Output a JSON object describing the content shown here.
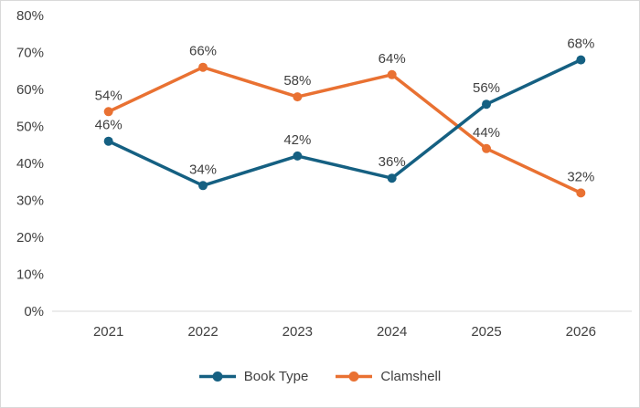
{
  "chart_data": {
    "type": "line",
    "categories": [
      "2021",
      "2022",
      "2023",
      "2024",
      "2025",
      "2026"
    ],
    "series": [
      {
        "name": "Book Type",
        "values": [
          46,
          34,
          42,
          36,
          56,
          68
        ],
        "color": "#156082"
      },
      {
        "name": "Clamshell",
        "values": [
          54,
          66,
          58,
          64,
          44,
          32
        ],
        "color": "#E97132"
      }
    ],
    "title": "",
    "xlabel": "",
    "ylabel": "",
    "ylim": [
      0,
      80
    ],
    "ytick_step": 10,
    "ytick_suffix": "%",
    "data_label_suffix": "%",
    "grid": false,
    "legend_position": "bottom"
  },
  "styles": {
    "axis_text_color": "#404040",
    "data_label_color": "#404040",
    "axis_line_color": "#d9d9d9",
    "border_color": "#d9d9d9",
    "background": "#ffffff"
  }
}
